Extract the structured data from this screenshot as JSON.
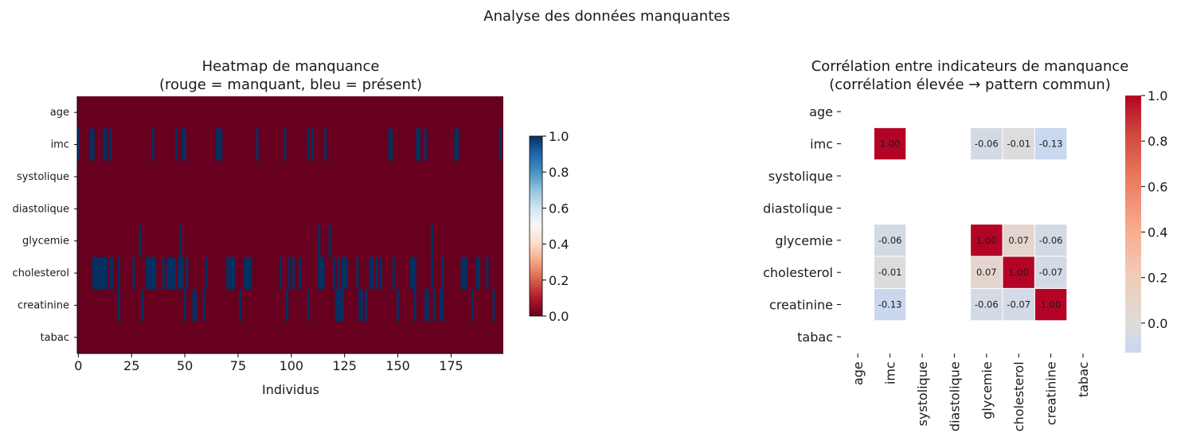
{
  "title": "Analyse des données manquantes",
  "colors": {
    "missing": "#67001f",
    "present": "#053061",
    "axis": "#000000",
    "text": "#1a1a1a"
  },
  "chart_data": [
    {
      "type": "heatmap",
      "title_line1": "Heatmap de manquance",
      "title_line2": "(rouge = manquant, bleu = présent)",
      "xlabel": "Individus",
      "ylabel": "",
      "xlim": [
        0,
        199
      ],
      "xticks": [
        "0",
        "25",
        "50",
        "75",
        "100",
        "125",
        "150",
        "175"
      ],
      "xtick_values": [
        0,
        25,
        50,
        75,
        100,
        125,
        150,
        175
      ],
      "n_individuals": 200,
      "variables": [
        "age",
        "imc",
        "systolique",
        "diastolique",
        "glycemie",
        "cholesterol",
        "creatinine",
        "tabac"
      ],
      "value_legend": {
        "0": "manquant",
        "1": "présent"
      },
      "present_indices": {
        "age": [],
        "imc": [
          0,
          6,
          7,
          12,
          13,
          15,
          35,
          46,
          49,
          50,
          65,
          66,
          67,
          84,
          97,
          108,
          110,
          116,
          146,
          147,
          159,
          160,
          163,
          177,
          178,
          198
        ],
        "systolique": [],
        "diastolique": [],
        "glycemie": [
          29,
          48,
          113,
          118,
          166
        ],
        "cholesterol": [
          7,
          8,
          9,
          10,
          11,
          12,
          13,
          15,
          16,
          19,
          26,
          32,
          33,
          34,
          35,
          36,
          40,
          42,
          43,
          44,
          45,
          47,
          48,
          49,
          51,
          60,
          70,
          71,
          72,
          73,
          78,
          79,
          80,
          81,
          95,
          99,
          101,
          104,
          113,
          114,
          115,
          120,
          122,
          124,
          125,
          126,
          131,
          137,
          138,
          140,
          142,
          148,
          156,
          157,
          158,
          166,
          171,
          180,
          181,
          182,
          187,
          188,
          192
        ],
        "creatinine": [
          19,
          30,
          50,
          54,
          55,
          59,
          76,
          98,
          108,
          121,
          122,
          123,
          124,
          132,
          133,
          135,
          150,
          158,
          163,
          164,
          167,
          170,
          171,
          185,
          195
        ],
        "tabac": []
      },
      "colorbar": {
        "ticks": [
          "0.0",
          "0.2",
          "0.4",
          "0.6",
          "0.8",
          "1.0"
        ],
        "min": 0,
        "max": 1
      }
    },
    {
      "type": "heatmap",
      "title_line1": "Corrélation entre indicateurs de manquance",
      "title_line2": "(corrélation élevée → pattern commun)",
      "variables": [
        "age",
        "imc",
        "systolique",
        "diastolique",
        "glycemie",
        "cholesterol",
        "creatinine",
        "tabac"
      ],
      "matrix": [
        [
          null,
          null,
          null,
          null,
          null,
          null,
          null,
          null
        ],
        [
          null,
          1.0,
          null,
          null,
          -0.06,
          -0.01,
          -0.13,
          null
        ],
        [
          null,
          null,
          null,
          null,
          null,
          null,
          null,
          null
        ],
        [
          null,
          null,
          null,
          null,
          null,
          null,
          null,
          null
        ],
        [
          null,
          -0.06,
          null,
          null,
          1.0,
          0.07,
          -0.06,
          null
        ],
        [
          null,
          -0.01,
          null,
          null,
          0.07,
          1.0,
          -0.07,
          null
        ],
        [
          null,
          -0.13,
          null,
          null,
          -0.06,
          -0.07,
          1.0,
          null
        ],
        [
          null,
          null,
          null,
          null,
          null,
          null,
          null,
          null
        ]
      ],
      "cell_labels": [
        [
          null,
          null,
          null,
          null,
          null,
          null,
          null,
          null
        ],
        [
          null,
          "1.00",
          null,
          null,
          "-0.06",
          "-0.01",
          "-0.13",
          null
        ],
        [
          null,
          null,
          null,
          null,
          null,
          null,
          null,
          null
        ],
        [
          null,
          null,
          null,
          null,
          null,
          null,
          null,
          null
        ],
        [
          null,
          "-0.06",
          null,
          null,
          "1.00",
          "0.07",
          "-0.06",
          null
        ],
        [
          null,
          "-0.01",
          null,
          null,
          "0.07",
          "1.00",
          "-0.07",
          null
        ],
        [
          null,
          "-0.13",
          null,
          null,
          "-0.06",
          "-0.07",
          "1.00",
          null
        ],
        [
          null,
          null,
          null,
          null,
          null,
          null,
          null,
          null
        ]
      ],
      "vmin": -0.13,
      "vmax": 1.0,
      "colorbar": {
        "ticks": [
          "0.0",
          "0.2",
          "0.4",
          "0.6",
          "0.8",
          "1.0"
        ],
        "tick_values": [
          0.0,
          0.2,
          0.4,
          0.6,
          0.8,
          1.0
        ]
      }
    }
  ]
}
